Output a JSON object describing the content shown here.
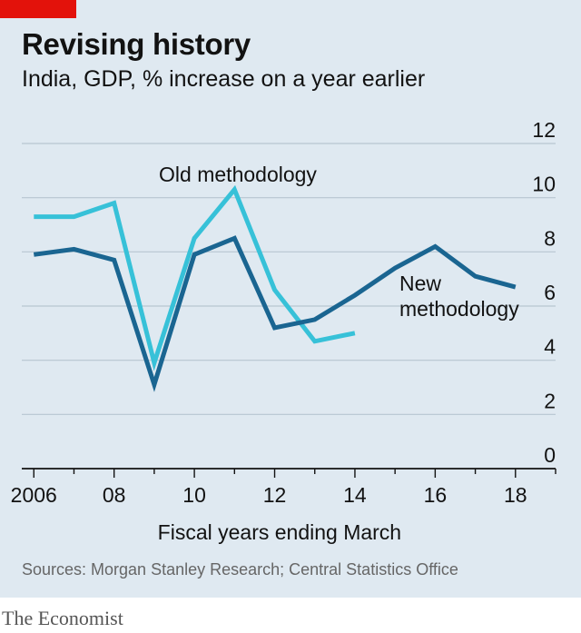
{
  "title": "Revising history",
  "subtitle": "India, GDP, % increase on a year earlier",
  "source": "Sources: Morgan Stanley Research; Central Statistics Office",
  "brand": "The Economist",
  "colors": {
    "panel": "#dfe9f1",
    "accent_tag": "#e3120b",
    "new_series": "#1a6591",
    "old_series": "#37c1d8"
  },
  "chart_data": {
    "type": "line",
    "xlabel": "Fiscal years ending March",
    "ylabel": "",
    "xlim": [
      2005.7,
      2019
    ],
    "ylim": [
      0,
      12
    ],
    "x_ticks": [
      2006,
      2008,
      2010,
      2012,
      2014,
      2016,
      2018
    ],
    "x_tick_labels": [
      "2006",
      "08",
      "10",
      "12",
      "14",
      "16",
      "18"
    ],
    "y_ticks": [
      0,
      2,
      4,
      6,
      8,
      10,
      12
    ],
    "y_tick_labels": [
      "0",
      "2",
      "4",
      "6",
      "8",
      "10",
      "12"
    ],
    "grid": "horizontal",
    "series": [
      {
        "name": "New methodology",
        "label_lines": [
          "New",
          "methodology"
        ],
        "x": [
          2006,
          2007,
          2008,
          2009,
          2010,
          2011,
          2012,
          2013,
          2014,
          2015,
          2016,
          2017,
          2018
        ],
        "values": [
          7.9,
          8.1,
          7.7,
          3.1,
          7.9,
          8.5,
          5.2,
          5.5,
          6.4,
          7.4,
          8.2,
          7.1,
          6.7
        ]
      },
      {
        "name": "Old methodology",
        "label_lines": [
          "Old methodology"
        ],
        "x": [
          2006,
          2007,
          2008,
          2009,
          2010,
          2011,
          2012,
          2013,
          2014
        ],
        "values": [
          9.3,
          9.3,
          9.8,
          3.9,
          8.5,
          10.3,
          6.6,
          4.7,
          5.0
        ]
      }
    ]
  }
}
